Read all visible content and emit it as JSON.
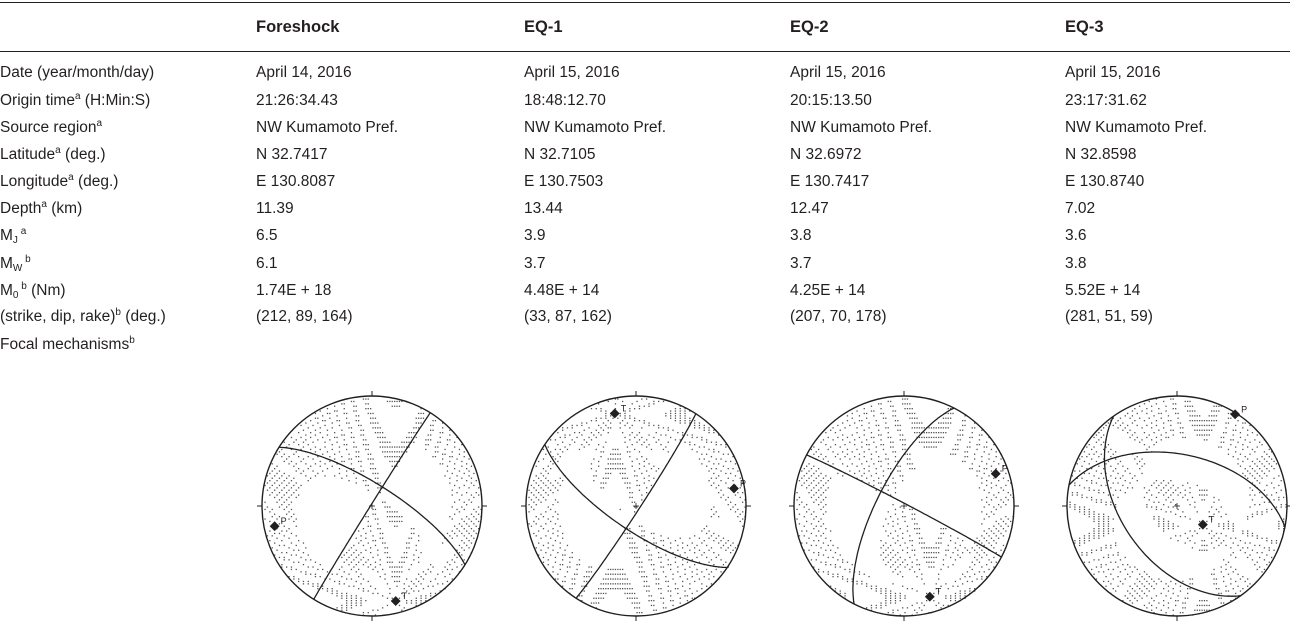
{
  "columns": [
    "",
    "Foreshock",
    "EQ-1",
    "EQ-2",
    "EQ-3"
  ],
  "rows": [
    {
      "label": {
        "base": "Date (year/month/day)"
      },
      "values": [
        "April 14, 2016",
        "April 15, 2016",
        "April 15, 2016",
        "April 15, 2016"
      ]
    },
    {
      "label": {
        "base": "Origin time",
        "sup": "a",
        "rest": " (H:Min:S)"
      },
      "values": [
        "21:26:34.43",
        "18:48:12.70",
        "20:15:13.50",
        "23:17:31.62"
      ]
    },
    {
      "label": {
        "base": "Source region",
        "sup": "a"
      },
      "values": [
        "NW Kumamoto Pref.",
        "NW Kumamoto Pref.",
        "NW Kumamoto Pref.",
        "NW Kumamoto Pref."
      ]
    },
    {
      "label": {
        "base": "Latitude",
        "sup": "a",
        "rest": " (deg.)"
      },
      "values": [
        "N 32.7417",
        "N 32.7105",
        "N 32.6972",
        "N 32.8598"
      ]
    },
    {
      "label": {
        "base": "Longitude",
        "sup": "a",
        "rest": " (deg.)"
      },
      "values": [
        "E 130.8087",
        "E 130.7503",
        "E 130.7417",
        "E 130.8740"
      ]
    },
    {
      "label": {
        "base": "Depth",
        "sup": "a",
        "rest": " (km)"
      },
      "values": [
        "11.39",
        "13.44",
        "12.47",
        "7.02"
      ]
    },
    {
      "label": {
        "base": "M",
        "sub": "J",
        "sup": " a"
      },
      "values": [
        "6.5",
        "3.9",
        "3.8",
        "3.6"
      ]
    },
    {
      "label": {
        "base": "M",
        "sub": "W",
        "sup": " b"
      },
      "values": [
        "6.1",
        "3.7",
        "3.7",
        "3.8"
      ]
    },
    {
      "label": {
        "base": "M",
        "sub": "0",
        "sup": " b",
        "rest": " (Nm)"
      },
      "values": [
        "1.74E + 18",
        "4.48E + 14",
        "4.25E + 14",
        "5.52E + 14"
      ]
    },
    {
      "label": {
        "base": "(strike, dip, rake)",
        "sup": "b",
        "rest": " (deg.)"
      },
      "values": [
        "(212, 89, 164)",
        "(33, 87, 162)",
        "(207, 70, 178)",
        "(281, 51, 59)"
      ]
    },
    {
      "label": {
        "base": "Focal mechanisms",
        "sup": "b"
      },
      "values": []
    }
  ],
  "mechanisms": [
    {
      "event": "Foreshock",
      "strike": 212,
      "dip": 89,
      "rake": 164,
      "P": "P",
      "T": "T"
    },
    {
      "event": "EQ-1",
      "strike": 33,
      "dip": 87,
      "rake": 162,
      "P": "P",
      "T": "T"
    },
    {
      "event": "EQ-2",
      "strike": 207,
      "dip": 70,
      "rake": 178,
      "P": "P",
      "T": "T"
    },
    {
      "event": "EQ-3",
      "strike": 281,
      "dip": 51,
      "rake": 59,
      "P": "P",
      "T": "T"
    }
  ]
}
